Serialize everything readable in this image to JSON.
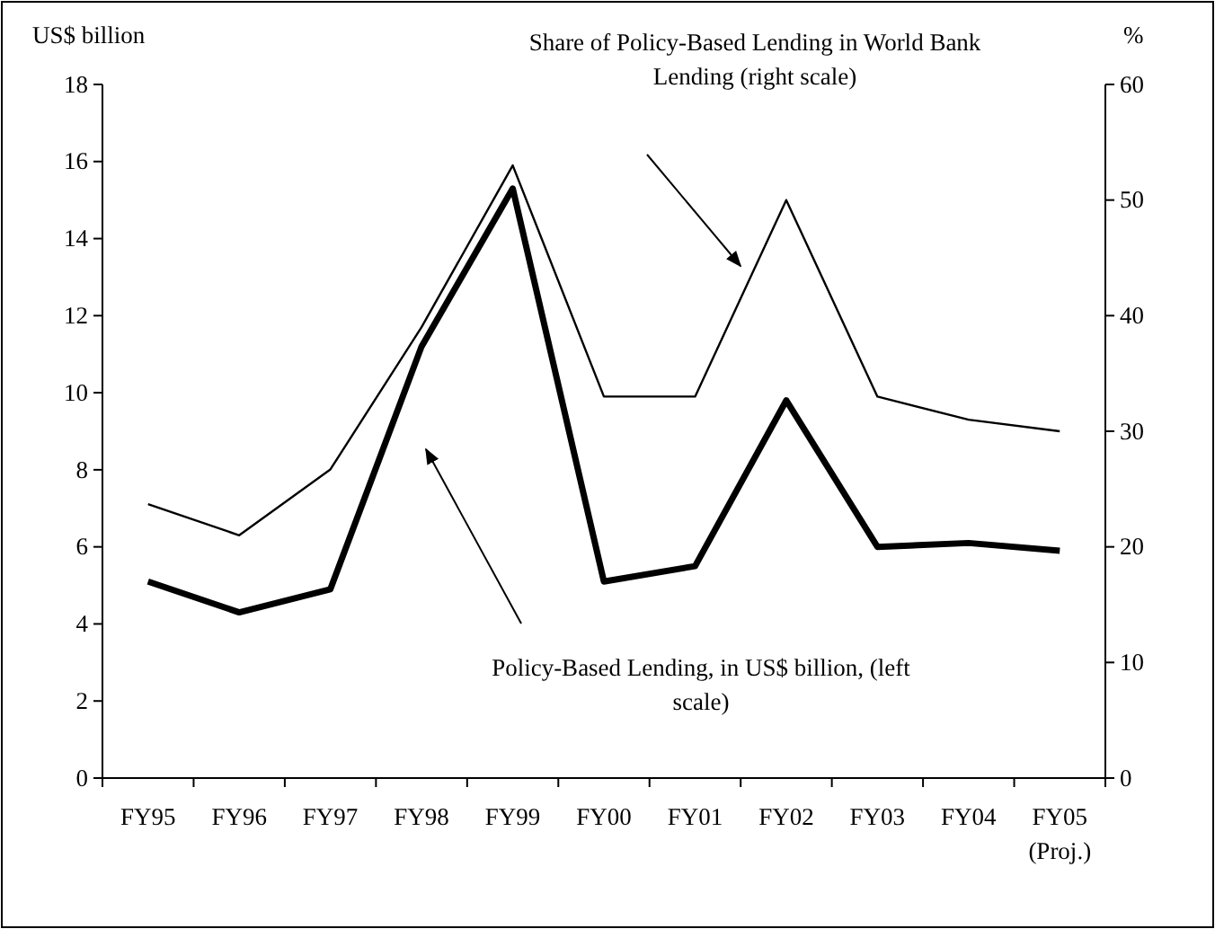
{
  "chart_data": {
    "type": "line",
    "ylabel": "US$ billion",
    "y2label": "%",
    "categories": [
      "FY95",
      "FY96",
      "FY97",
      "FY98",
      "FY99",
      "FY00",
      "FY01",
      "FY02",
      "FY03",
      "FY04",
      "FY05 (Proj.)"
    ],
    "series": [
      {
        "color": "#000000",
        "axis": "y2",
        "values": [
          23.7,
          21,
          26.7,
          39,
          53,
          33,
          33,
          50,
          33,
          31,
          30
        ]
      },
      {
        "color": "#000000",
        "values": [
          5.1,
          4.3,
          4.9,
          11.2,
          15.3,
          5.1,
          5.5,
          9.8,
          6.0,
          6.1,
          5.9
        ]
      }
    ],
    "annotations": [
      "Share of Policy-Based Lending in World Bank Lending (right scale)",
      "Policy-Based Lending, in US$ billion, (left scale)"
    ],
    "ylim": [
      0,
      18
    ],
    "yticks": [
      0,
      2,
      4,
      6,
      8,
      10,
      12,
      14,
      16,
      18
    ],
    "y2lim": [
      0,
      60
    ],
    "y2ticks": [
      0,
      10,
      20,
      30,
      40,
      50,
      60
    ],
    "grid": false,
    "marker": "none",
    "line_style": "solid"
  }
}
